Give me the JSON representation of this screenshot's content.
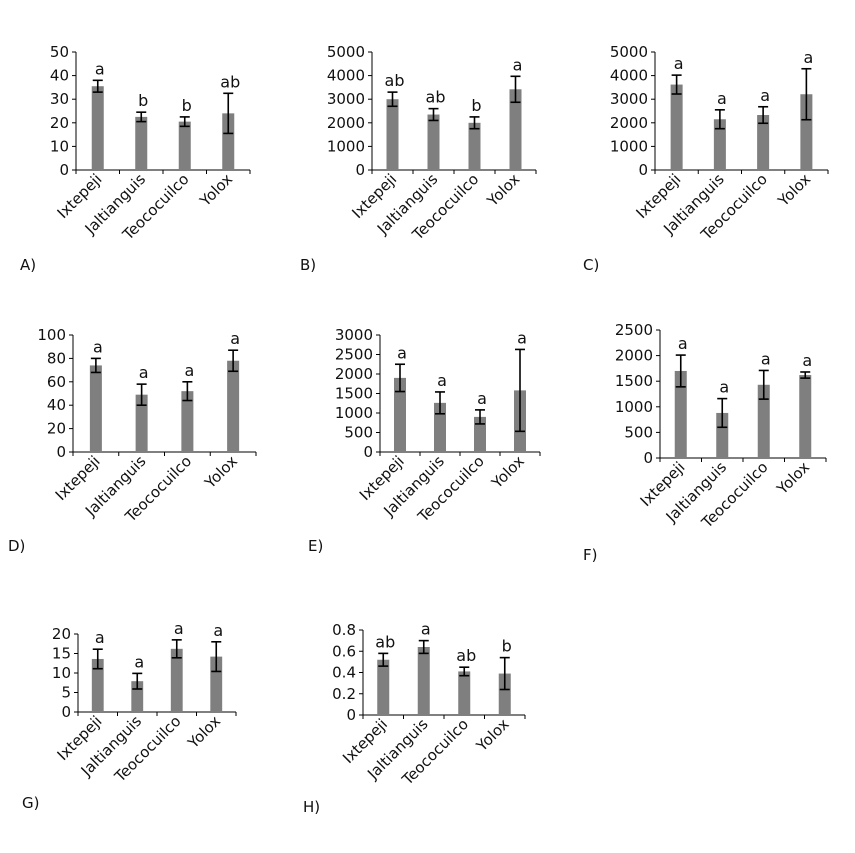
{
  "figure": {
    "categories": [
      "Ixtepeji",
      "Jaltianguis",
      "Teococuilco",
      "Yolox"
    ]
  },
  "colors": {
    "bar": "#7f7f7f",
    "axis": "#000000",
    "text": "#111111"
  },
  "chart_data": [
    {
      "type": "bar",
      "panel_label": "A)",
      "categories": [
        "Ixtepeji",
        "Jaltianguis",
        "Teococuilco",
        "Yolox"
      ],
      "values": [
        35.5,
        22.5,
        20.5,
        24
      ],
      "errors": [
        2.5,
        2,
        2,
        8.5
      ],
      "letters": [
        "a",
        "b",
        "b",
        "ab"
      ],
      "ylim": [
        0,
        50
      ],
      "yticks": [
        "0",
        "10",
        "20",
        "30",
        "40",
        "50"
      ],
      "xlabel": "",
      "ylabel": "",
      "title": ""
    },
    {
      "type": "bar",
      "panel_label": "B)",
      "categories": [
        "Ixtepeji",
        "Jaltianguis",
        "Teococuilco",
        "Yolox"
      ],
      "values": [
        3000,
        2350,
        2000,
        3420
      ],
      "errors": [
        300,
        250,
        250,
        550
      ],
      "letters": [
        "ab",
        "ab",
        "b",
        "a"
      ],
      "ylim": [
        0,
        5000
      ],
      "yticks": [
        "0",
        "1000",
        "2000",
        "3000",
        "4000",
        "5000"
      ],
      "xlabel": "",
      "ylabel": "",
      "title": ""
    },
    {
      "type": "bar",
      "panel_label": "C)",
      "categories": [
        "Ixtepeji",
        "Jaltianguis",
        "Teococuilco",
        "Yolox"
      ],
      "values": [
        3620,
        2150,
        2330,
        3210
      ],
      "errors": [
        400,
        400,
        350,
        1080
      ],
      "letters": [
        "a",
        "a",
        "a",
        "a"
      ],
      "ylim": [
        0,
        5000
      ],
      "yticks": [
        "0",
        "1000",
        "2000",
        "3000",
        "4000",
        "5000"
      ],
      "xlabel": "",
      "ylabel": "",
      "title": ""
    },
    {
      "type": "bar",
      "panel_label": "D)",
      "categories": [
        "Ixtepeji",
        "Jaltianguis",
        "Teococuilco",
        "Yolox"
      ],
      "values": [
        74,
        49,
        52,
        78
      ],
      "errors": [
        6,
        9,
        8,
        9
      ],
      "letters": [
        "a",
        "a",
        "a",
        "a"
      ],
      "ylim": [
        0,
        100
      ],
      "yticks": [
        "0",
        "20",
        "40",
        "60",
        "80",
        "100"
      ],
      "xlabel": "",
      "ylabel": "",
      "title": ""
    },
    {
      "type": "bar",
      "panel_label": "E)",
      "categories": [
        "Ixtepeji",
        "Jaltianguis",
        "Teococuilco",
        "Yolox"
      ],
      "values": [
        1900,
        1260,
        900,
        1580
      ],
      "errors": [
        350,
        280,
        180,
        1050
      ],
      "letters": [
        "a",
        "a",
        "a",
        "a"
      ],
      "ylim": [
        0,
        3000
      ],
      "yticks": [
        "0",
        "500",
        "1000",
        "1500",
        "2000",
        "2500",
        "3000"
      ],
      "xlabel": "",
      "ylabel": "",
      "title": ""
    },
    {
      "type": "bar",
      "panel_label": "F)",
      "categories": [
        "Ixtepeji",
        "Jaltianguis",
        "Teococuilco",
        "Yolox"
      ],
      "values": [
        1700,
        880,
        1430,
        1620
      ],
      "errors": [
        310,
        280,
        280,
        60
      ],
      "letters": [
        "a",
        "a",
        "a",
        "a"
      ],
      "ylim": [
        0,
        2500
      ],
      "yticks": [
        "0",
        "500",
        "1000",
        "1500",
        "2000",
        "2500"
      ],
      "xlabel": "",
      "ylabel": "",
      "title": ""
    },
    {
      "type": "bar",
      "panel_label": "G)",
      "categories": [
        "Ixtepeji",
        "Jaltianguis",
        "Teococuilco",
        "Yolox"
      ],
      "values": [
        13.6,
        7.9,
        16.2,
        14.2
      ],
      "errors": [
        2.5,
        2,
        2.3,
        3.8
      ],
      "letters": [
        "a",
        "a",
        "a",
        "a"
      ],
      "ylim": [
        0,
        20
      ],
      "yticks": [
        "0",
        "5",
        "10",
        "15",
        "20"
      ],
      "xlabel": "",
      "ylabel": "",
      "title": ""
    },
    {
      "type": "bar",
      "panel_label": "H)",
      "categories": [
        "Ixtepeji",
        "Jaltianguis",
        "Teococuilco",
        "Yolox"
      ],
      "values": [
        0.52,
        0.64,
        0.41,
        0.39
      ],
      "errors": [
        0.06,
        0.06,
        0.04,
        0.15
      ],
      "letters": [
        "ab",
        "a",
        "ab",
        "b"
      ],
      "ylim": [
        0,
        0.8
      ],
      "yticks": [
        "0",
        "0.2",
        "0.4",
        "0.6",
        "0.8"
      ],
      "xlabel": "",
      "ylabel": "",
      "title": ""
    }
  ]
}
